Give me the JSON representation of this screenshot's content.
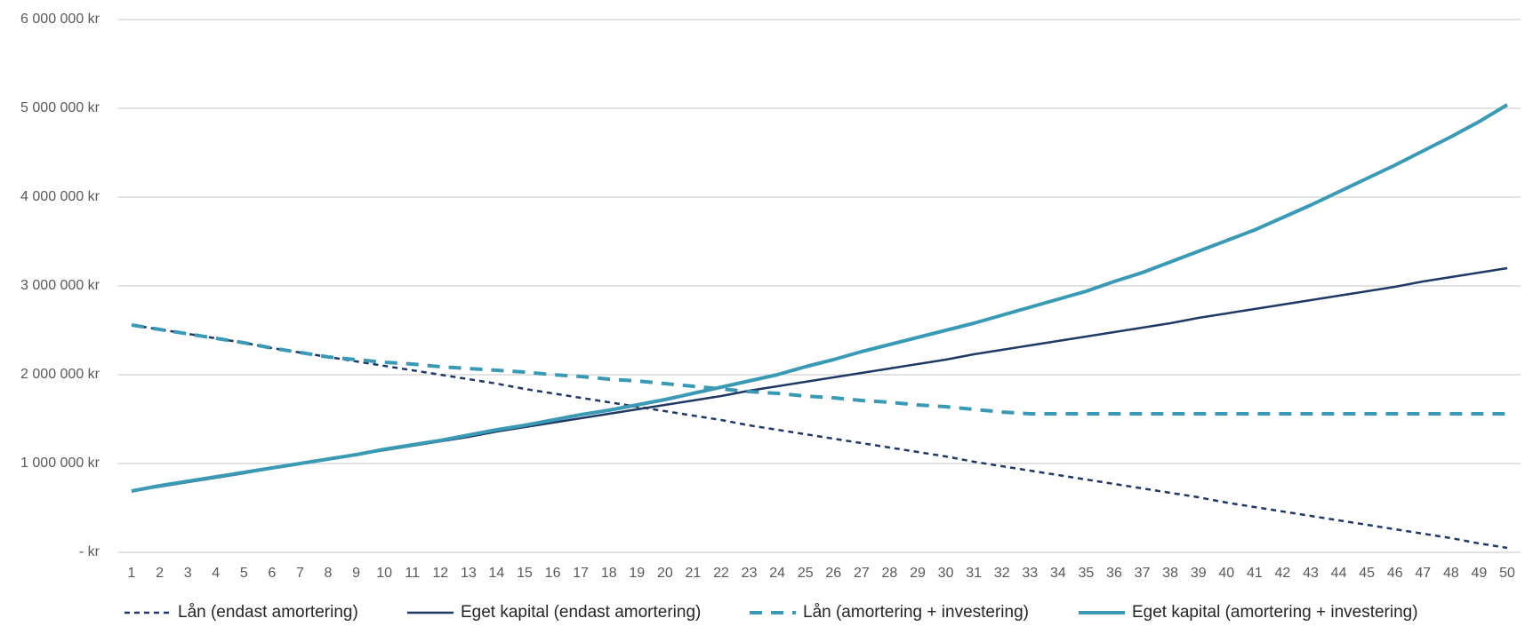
{
  "chart_data": {
    "type": "line",
    "categories": [
      1,
      2,
      3,
      4,
      5,
      6,
      7,
      8,
      9,
      10,
      11,
      12,
      13,
      14,
      15,
      16,
      17,
      18,
      19,
      20,
      21,
      22,
      23,
      24,
      25,
      26,
      27,
      28,
      29,
      30,
      31,
      32,
      33,
      34,
      35,
      36,
      37,
      38,
      39,
      40,
      41,
      42,
      43,
      44,
      45,
      46,
      47,
      48,
      49,
      50
    ],
    "ylim": [
      0,
      6000000
    ],
    "yticks": [
      {
        "value": 0,
        "label": "- kr"
      },
      {
        "value": 1000000,
        "label": "1 000 000 kr"
      },
      {
        "value": 2000000,
        "label": "2 000 000 kr"
      },
      {
        "value": 3000000,
        "label": "3 000 000 kr"
      },
      {
        "value": 4000000,
        "label": "4 000 000 kr"
      },
      {
        "value": 5000000,
        "label": "5 000 000 kr"
      },
      {
        "value": 6000000,
        "label": "6 000 000 kr"
      }
    ],
    "grid": true,
    "legend": "bottom",
    "series": [
      {
        "name": "Lån (endast amortering)",
        "color": "#1f3864",
        "dashed": true,
        "values": [
          2560000,
          2510000,
          2460000,
          2410000,
          2360000,
          2300000,
          2250000,
          2200000,
          2150000,
          2100000,
          2050000,
          2000000,
          1950000,
          1900000,
          1840000,
          1790000,
          1740000,
          1690000,
          1640000,
          1590000,
          1540000,
          1490000,
          1430000,
          1380000,
          1330000,
          1280000,
          1230000,
          1180000,
          1130000,
          1080000,
          1020000,
          970000,
          920000,
          870000,
          820000,
          770000,
          720000,
          670000,
          620000,
          560000,
          510000,
          460000,
          410000,
          360000,
          310000,
          260000,
          210000,
          160000,
          100000,
          50000
        ]
      },
      {
        "name": "Eget kapital (endast amortering)",
        "color": "#1f3864",
        "dashed": false,
        "values": [
          690000,
          740000,
          790000,
          840000,
          890000,
          950000,
          1000000,
          1050000,
          1100000,
          1150000,
          1200000,
          1250000,
          1300000,
          1360000,
          1410000,
          1460000,
          1510000,
          1560000,
          1610000,
          1660000,
          1710000,
          1760000,
          1820000,
          1870000,
          1920000,
          1970000,
          2020000,
          2070000,
          2120000,
          2170000,
          2230000,
          2280000,
          2330000,
          2380000,
          2430000,
          2480000,
          2530000,
          2580000,
          2640000,
          2690000,
          2740000,
          2790000,
          2840000,
          2890000,
          2940000,
          2990000,
          3050000,
          3100000,
          3150000,
          3200000
        ]
      },
      {
        "name": "Lån (amortering + investering)",
        "color": "#3a9ab5",
        "dashed": true,
        "values": [
          2560000,
          2510000,
          2460000,
          2410000,
          2360000,
          2300000,
          2250000,
          2200000,
          2170000,
          2140000,
          2120000,
          2090000,
          2070000,
          2050000,
          2030000,
          2000000,
          1980000,
          1950000,
          1930000,
          1900000,
          1870000,
          1840000,
          1810000,
          1790000,
          1760000,
          1740000,
          1710000,
          1690000,
          1660000,
          1640000,
          1610000,
          1580000,
          1560000,
          1560000,
          1560000,
          1560000,
          1560000,
          1560000,
          1560000,
          1560000,
          1560000,
          1560000,
          1560000,
          1560000,
          1560000,
          1560000,
          1560000,
          1560000,
          1560000,
          1560000
        ]
      },
      {
        "name": "Eget kapital (amortering + investering)",
        "color": "#3a9ab5",
        "dashed": false,
        "values": [
          690000,
          750000,
          800000,
          850000,
          900000,
          950000,
          1000000,
          1050000,
          1100000,
          1160000,
          1210000,
          1260000,
          1320000,
          1380000,
          1430000,
          1490000,
          1550000,
          1600000,
          1660000,
          1720000,
          1790000,
          1860000,
          1930000,
          2000000,
          2090000,
          2170000,
          2260000,
          2340000,
          2420000,
          2500000,
          2580000,
          2670000,
          2760000,
          2850000,
          2940000,
          3050000,
          3150000,
          3270000,
          3390000,
          3510000,
          3630000,
          3770000,
          3910000,
          4060000,
          4210000,
          4360000,
          4520000,
          4680000,
          4850000,
          5040000
        ]
      }
    ]
  }
}
